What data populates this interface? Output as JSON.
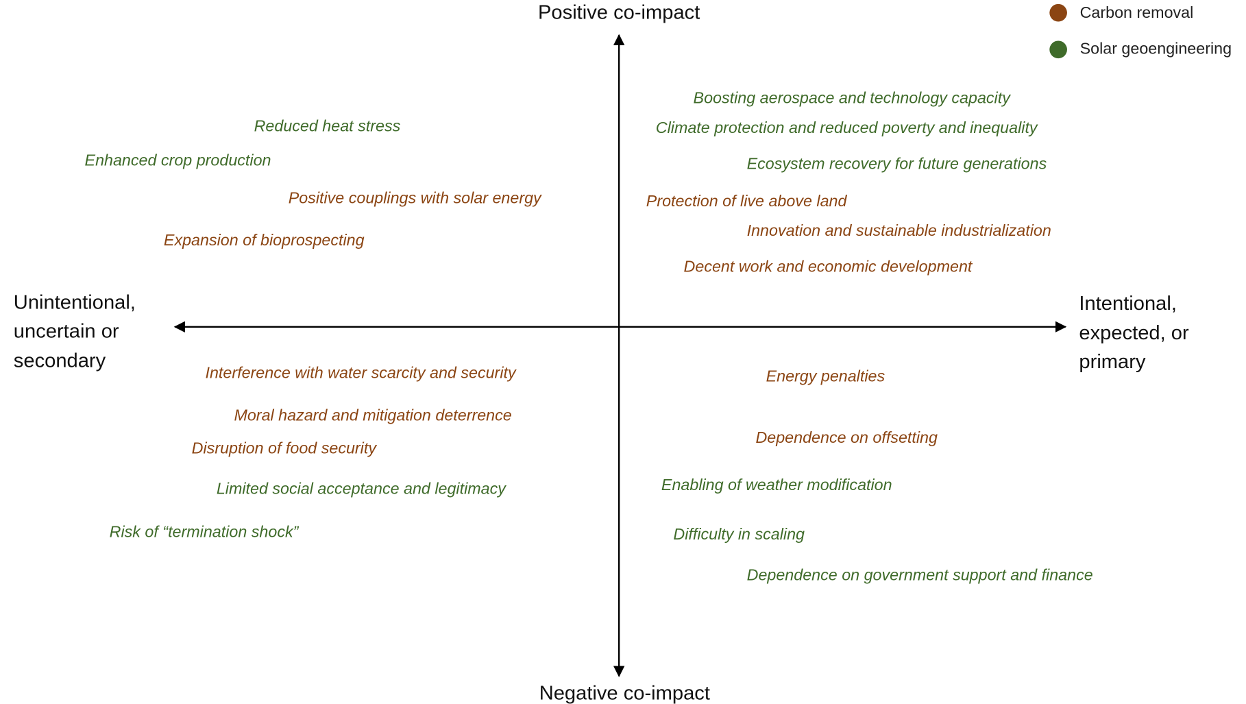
{
  "axes": {
    "top": "Positive co-impact",
    "bottom": "Negative co-impact",
    "left": [
      "Unintentional,",
      "uncertain or",
      "secondary"
    ],
    "right": [
      "Intentional,",
      "expected, or",
      "primary"
    ]
  },
  "legend": [
    {
      "name": "Carbon removal",
      "color": "#8b4513"
    },
    {
      "name": "Solar geoengineering",
      "color": "#3f6b2a"
    }
  ],
  "quadrants": {
    "top_left": [
      "Reduced heat stress",
      "Enhanced crop production",
      "Positive couplings with solar energy",
      "Expansion of bioprospecting"
    ],
    "top_right": [
      "Boosting aerospace and technology capacity",
      "Climate protection and reduced poverty and inequality",
      "Ecosystem recovery for future generations",
      "Protection of live above land",
      "Innovation and sustainable industrialization",
      "Decent work and economic development"
    ],
    "bottom_left": [
      "Interference with water scarcity and security",
      "Moral hazard and mitigation deterrence",
      "Disruption of food security",
      "Limited social acceptance and legitimacy",
      "Risk of “termination shock”"
    ],
    "bottom_right": [
      "Energy penalties",
      "Dependence on offsetting",
      "Enabling of weather modification",
      "Difficulty in scaling",
      "Dependence on government support and finance"
    ]
  }
}
